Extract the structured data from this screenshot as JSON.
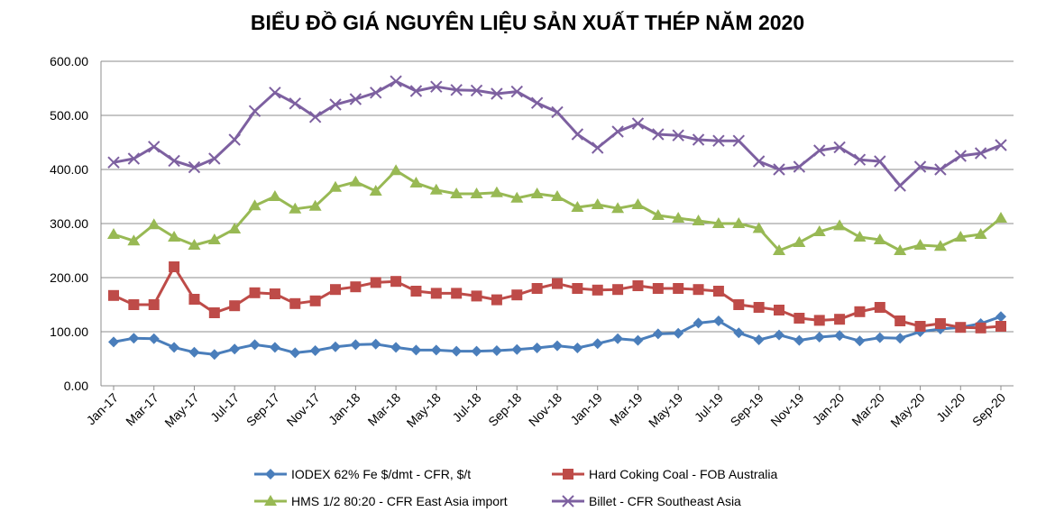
{
  "chart_data": {
    "type": "line",
    "title": "BIỂU ĐỒ GIÁ NGUYÊN LIỆU SẢN XUẤT THÉP NĂM 2020",
    "xlabel": "",
    "ylabel": "",
    "ylim": [
      0,
      600
    ],
    "yticks": [
      "0.00",
      "100.00",
      "200.00",
      "300.00",
      "400.00",
      "500.00",
      "600.00"
    ],
    "grid": true,
    "legend_position": "bottom",
    "x": [
      "Jan-17",
      "Feb-17",
      "Mar-17",
      "Apr-17",
      "May-17",
      "Jun-17",
      "Jul-17",
      "Aug-17",
      "Sep-17",
      "Oct-17",
      "Nov-17",
      "Dec-17",
      "Jan-18",
      "Feb-18",
      "Mar-18",
      "Apr-18",
      "May-18",
      "Jun-18",
      "Jul-18",
      "Aug-18",
      "Sep-18",
      "Oct-18",
      "Nov-18",
      "Dec-18",
      "Jan-19",
      "Feb-19",
      "Mar-19",
      "Apr-19",
      "May-19",
      "Jun-19",
      "Jul-19",
      "Aug-19",
      "Sep-19",
      "Oct-19",
      "Nov-19",
      "Dec-19",
      "Jan-20",
      "Feb-20",
      "Mar-20",
      "Apr-20",
      "May-20",
      "Jun-20",
      "Jul-20",
      "Aug-20",
      "Sep-20"
    ],
    "x_tick_labels": [
      "Jan-17",
      "Mar-17",
      "May-17",
      "Jul-17",
      "Sep-17",
      "Nov-17",
      "Jan-18",
      "Mar-18",
      "May-18",
      "Jul-18",
      "Sep-18",
      "Nov-18",
      "Jan-19",
      "Mar-19",
      "May-19",
      "Jul-19",
      "Sep-19",
      "Nov-19",
      "Jan-20",
      "Mar-20",
      "May-20",
      "Jul-20",
      "Sep-20"
    ],
    "series": [
      {
        "name": "IODEX 62% Fe $/dmt - CFR, $/t",
        "color": "#4a7ebb",
        "marker": "diamond",
        "values": [
          81,
          88,
          87,
          71,
          62,
          58,
          68,
          76,
          71,
          61,
          65,
          72,
          76,
          77,
          71,
          66,
          66,
          64,
          64,
          65,
          67,
          70,
          74,
          70,
          78,
          87,
          84,
          96,
          97,
          116,
          120,
          98,
          85,
          94,
          84,
          90,
          93,
          83,
          89,
          88,
          100,
          105,
          108,
          115,
          128
        ]
      },
      {
        "name": "Hard Coking Coal - FOB Australia",
        "color": "#be4b48",
        "marker": "square",
        "values": [
          167,
          150,
          150,
          220,
          160,
          135,
          148,
          172,
          170,
          152,
          157,
          178,
          183,
          191,
          193,
          175,
          171,
          171,
          166,
          159,
          168,
          180,
          189,
          180,
          177,
          178,
          185,
          180,
          180,
          178,
          175,
          150,
          145,
          140,
          125,
          121,
          123,
          137,
          145,
          120,
          110,
          115,
          108,
          107,
          110
        ]
      },
      {
        "name": "HMS 1/2 80:20 - CFR East Asia import",
        "color": "#98b954",
        "marker": "triangle",
        "values": [
          280,
          268,
          298,
          275,
          260,
          270,
          290,
          333,
          350,
          327,
          332,
          367,
          377,
          360,
          398,
          375,
          362,
          355,
          355,
          357,
          347,
          355,
          350,
          330,
          335,
          328,
          335,
          315,
          310,
          305,
          300,
          300,
          291,
          250,
          265,
          285,
          296,
          275,
          270,
          250,
          260,
          258,
          275,
          280,
          310
        ]
      },
      {
        "name": "Billet - CFR Southeast Asia",
        "color": "#7d60a0",
        "marker": "x",
        "values": [
          413,
          420,
          442,
          416,
          404,
          420,
          455,
          508,
          542,
          522,
          497,
          520,
          530,
          542,
          563,
          545,
          553,
          547,
          546,
          540,
          544,
          523,
          506,
          465,
          440,
          470,
          485,
          465,
          463,
          455,
          453,
          453,
          415,
          400,
          405,
          435,
          441,
          418,
          415,
          370,
          405,
          400,
          425,
          430,
          445
        ]
      }
    ]
  }
}
